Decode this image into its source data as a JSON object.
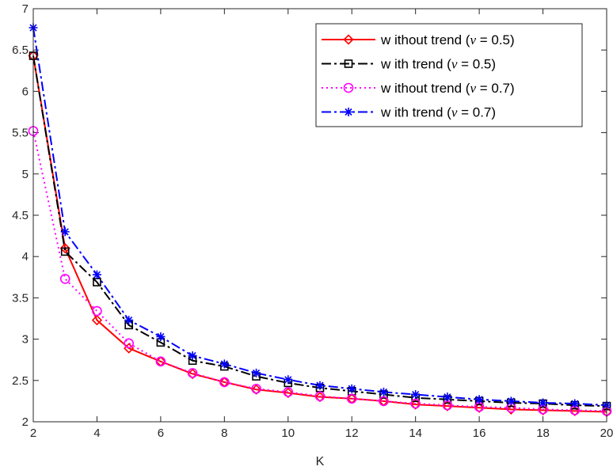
{
  "chart_data": {
    "type": "line",
    "title": "",
    "xlabel": "K",
    "ylabel": "",
    "xlim": [
      2,
      20
    ],
    "ylim": [
      2,
      7
    ],
    "xticks": [
      2,
      4,
      6,
      8,
      10,
      12,
      14,
      16,
      18,
      20
    ],
    "yticks": [
      2,
      2.5,
      3,
      3.5,
      4,
      4.5,
      5,
      5.5,
      6,
      6.5,
      7
    ],
    "grid": false,
    "legend_position": "top-right",
    "x": [
      2,
      3,
      4,
      5,
      6,
      7,
      8,
      9,
      10,
      11,
      12,
      13,
      14,
      15,
      16,
      17,
      18,
      19,
      20
    ],
    "series": [
      {
        "name_prefix": "w ithout trend (",
        "name_param": "ν",
        "name_suffix": " = 0.5)",
        "color": "#ff0000",
        "line_style": "solid",
        "marker": "diamond",
        "values": [
          6.43,
          4.1,
          3.23,
          2.89,
          2.73,
          2.58,
          2.48,
          2.39,
          2.35,
          2.3,
          2.28,
          2.25,
          2.21,
          2.19,
          2.17,
          2.15,
          2.14,
          2.13,
          2.12
        ]
      },
      {
        "name_prefix": "w ith trend (",
        "name_param": "ν",
        "name_suffix": " = 0.5)",
        "color": "#000000",
        "line_style": "dashdot",
        "marker": "square",
        "values": [
          6.43,
          4.06,
          3.69,
          3.17,
          2.96,
          2.74,
          2.67,
          2.55,
          2.47,
          2.41,
          2.37,
          2.33,
          2.29,
          2.27,
          2.25,
          2.23,
          2.22,
          2.2,
          2.19
        ]
      },
      {
        "name_prefix": "w ithout trend (",
        "name_param": "ν",
        "name_suffix": " = 0.7)",
        "color": "#ff00ff",
        "line_style": "dotted",
        "marker": "circle",
        "values": [
          5.52,
          3.73,
          3.34,
          2.95,
          2.73,
          2.59,
          2.48,
          2.4,
          2.36,
          2.31,
          2.28,
          2.25,
          2.22,
          2.2,
          2.18,
          2.17,
          2.15,
          2.14,
          2.13
        ]
      },
      {
        "name_prefix": "w ith trend (",
        "name_param": "ν",
        "name_suffix": " = 0.7)",
        "color": "#0000ff",
        "line_style": "dashdot",
        "marker": "asterisk",
        "values": [
          6.77,
          4.3,
          3.78,
          3.23,
          3.03,
          2.8,
          2.7,
          2.59,
          2.51,
          2.44,
          2.4,
          2.36,
          2.33,
          2.3,
          2.27,
          2.25,
          2.23,
          2.22,
          2.2
        ]
      }
    ]
  }
}
